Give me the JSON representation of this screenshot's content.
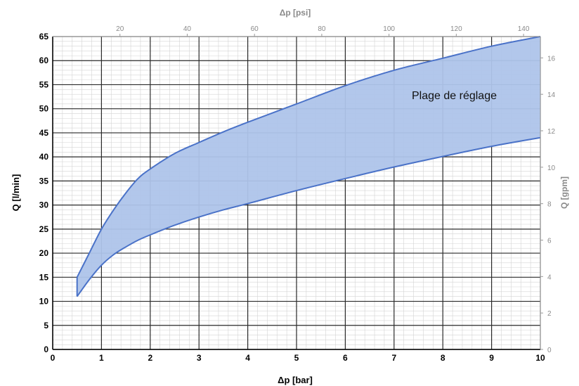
{
  "chart_data": {
    "type": "area",
    "title": "",
    "xlabel": "Δp [bar]",
    "ylabel": "Q [l/min]",
    "x2label": "Δp [psi]",
    "y2label": "Q [gpm]",
    "xlim": [
      0,
      10
    ],
    "ylim": [
      0,
      65
    ],
    "x2lim": [
      0,
      145
    ],
    "y2lim": [
      0,
      17.17
    ],
    "xticks": [
      0,
      1,
      2,
      3,
      4,
      5,
      6,
      7,
      8,
      9,
      10
    ],
    "yticks": [
      0,
      5,
      10,
      15,
      20,
      25,
      30,
      35,
      40,
      45,
      50,
      55,
      60,
      65
    ],
    "x2ticks": [
      20,
      40,
      60,
      80,
      100,
      120,
      140
    ],
    "y2ticks": [
      0,
      2,
      4,
      6,
      8,
      10,
      12,
      14,
      16
    ],
    "grid": true,
    "band_color": "#aec4ea",
    "line_color": "#4a72c8",
    "annotation": "Plage de réglage",
    "series": [
      {
        "role": "upper",
        "x": [
          0.5,
          0.75,
          1.0,
          1.25,
          1.5,
          1.75,
          2.0,
          2.5,
          3.0,
          3.5,
          4.0,
          5.0,
          6.0,
          7.0,
          8.0,
          9.0,
          10.0
        ],
        "values": [
          15,
          20,
          25,
          29,
          32.5,
          35.5,
          37.5,
          40.7,
          43,
          45.2,
          47.2,
          51,
          54.8,
          58,
          60.5,
          63,
          65
        ]
      },
      {
        "role": "lower",
        "x": [
          0.5,
          0.75,
          1.0,
          1.25,
          1.5,
          1.75,
          2.0,
          2.5,
          3.0,
          3.5,
          4.0,
          5.0,
          6.0,
          7.0,
          8.0,
          9.0,
          10.0
        ],
        "values": [
          11,
          14.5,
          17.5,
          19.7,
          21.3,
          22.7,
          23.8,
          25.8,
          27.5,
          29,
          30.3,
          33,
          35.5,
          37.9,
          40.1,
          42.2,
          44
        ]
      }
    ]
  }
}
